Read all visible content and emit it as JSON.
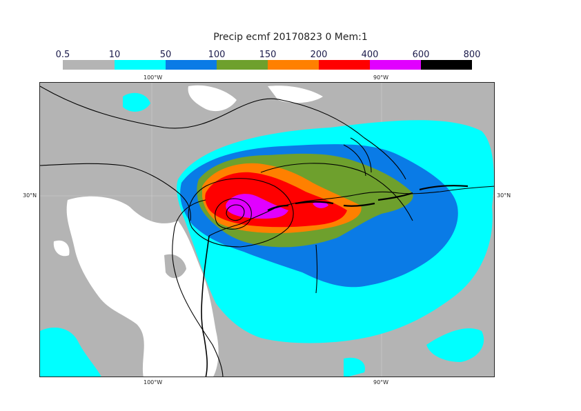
{
  "title": "Precip ecmf 20170823 0 Mem:1",
  "legend": {
    "ticks": [
      "0.5",
      "10",
      "50",
      "100",
      "150",
      "200",
      "400",
      "600",
      "800"
    ],
    "colors": [
      "#b4b4b4",
      "#00ffff",
      "#0a7be6",
      "#6ea02d",
      "#ff8000",
      "#ff0000",
      "#e100ff",
      "#000000"
    ]
  },
  "axes": {
    "top": [
      "100°W",
      "90°W"
    ],
    "bottom": [
      "100°W",
      "90°W"
    ],
    "left": [
      "30°N"
    ],
    "right": [
      "30°N"
    ]
  },
  "map": {
    "background_color": "#b4b4b4",
    "land_dry_color": "#ffffff",
    "outline_color": "#000000"
  }
}
